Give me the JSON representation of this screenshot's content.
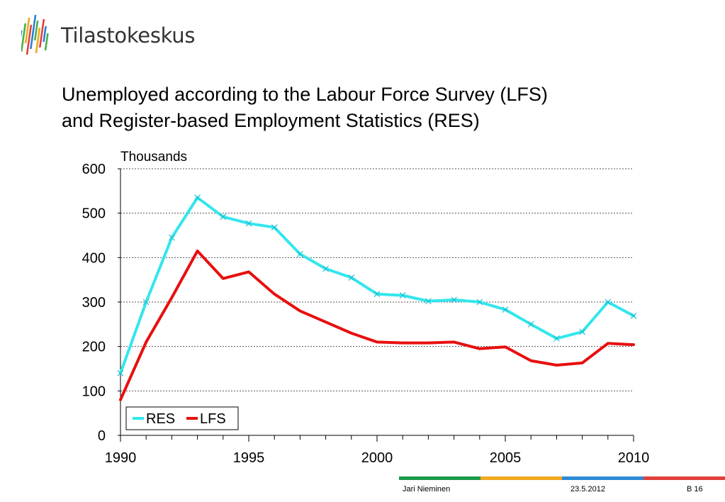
{
  "brand": {
    "name": "Tilastokeskus",
    "logo_colors": [
      "#2e7bd6",
      "#48b04a",
      "#f0a820",
      "#e0403a",
      "#2e7bd6",
      "#48b04a",
      "#f0a820",
      "#e0403a",
      "#2e7bd6",
      "#48b04a"
    ]
  },
  "slide": {
    "title_line1": "Unemployed according to the Labour Force Survey (LFS)",
    "title_line2": "and Register-based Employment Statistics (RES)"
  },
  "chart_data": {
    "type": "line",
    "ylabel": "Thousands",
    "ylim": [
      0,
      600
    ],
    "yticks": [
      "0",
      "100",
      "200",
      "300",
      "400",
      "500",
      "600"
    ],
    "xlim": [
      1990,
      2010
    ],
    "xticks": [
      "1990",
      "1995",
      "2000",
      "2005",
      "2010"
    ],
    "grid": true,
    "legend_placement": "bottom-left",
    "x": [
      1990,
      1991,
      1992,
      1993,
      1994,
      1995,
      1996,
      1997,
      1998,
      1999,
      2000,
      2001,
      2002,
      2003,
      2004,
      2005,
      2006,
      2007,
      2008,
      2009,
      2010
    ],
    "series": [
      {
        "name": "RES",
        "color": "#33e6ee",
        "marker": "x",
        "values": [
          140,
          300,
          445,
          535,
          492,
          477,
          468,
          408,
          375,
          355,
          318,
          315,
          302,
          305,
          300,
          283,
          250,
          218,
          233,
          300,
          269
        ]
      },
      {
        "name": "LFS",
        "color": "#e80f0f",
        "marker": "none",
        "values": [
          80,
          210,
          310,
          415,
          353,
          368,
          318,
          280,
          255,
          230,
          210,
          208,
          208,
          210,
          195,
          199,
          168,
          158,
          163,
          207,
          204
        ]
      }
    ]
  },
  "footer": {
    "author": "Jari Nieminen",
    "date": "23.5.2012",
    "page": "B 16",
    "bar_colors": [
      "#1a9a4a",
      "#f0a820",
      "#2e8bd6",
      "#e0403a"
    ]
  }
}
